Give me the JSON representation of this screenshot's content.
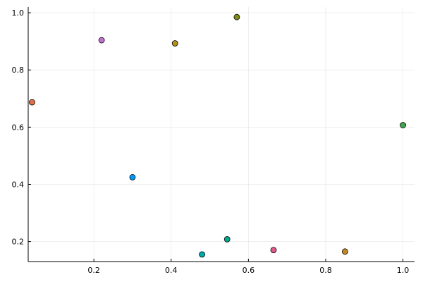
{
  "chart_data": {
    "type": "scatter",
    "title": "",
    "xlabel": "",
    "ylabel": "",
    "grid": true,
    "legend": false,
    "xlim": [
      0.03,
      1.03
    ],
    "ylim": [
      0.13,
      1.02
    ],
    "x_ticks": [
      0.2,
      0.4,
      0.6,
      0.8,
      1.0
    ],
    "x_tick_labels": [
      "0.2",
      "0.4",
      "0.6",
      "0.8",
      "1.0"
    ],
    "y_ticks": [
      0.2,
      0.4,
      0.6,
      0.8,
      1.0
    ],
    "y_tick_labels": [
      "0.2",
      "0.4",
      "0.6",
      "0.8",
      "1.0"
    ],
    "series": [
      {
        "x": [
          0.3
        ],
        "y": [
          0.425
        ],
        "color": "#009AFA"
      },
      {
        "x": [
          0.57
        ],
        "y": [
          0.985
        ],
        "color": "#7F8C1A"
      },
      {
        "x": [
          0.04
        ],
        "y": [
          0.687
        ],
        "color": "#E26F46"
      },
      {
        "x": [
          0.22
        ],
        "y": [
          0.904
        ],
        "color": "#C271D2"
      },
      {
        "x": [
          0.41
        ],
        "y": [
          0.893
        ],
        "color": "#B38F1E"
      },
      {
        "x": [
          1.0
        ],
        "y": [
          0.607
        ],
        "color": "#3EA44E"
      },
      {
        "x": [
          0.48
        ],
        "y": [
          0.155
        ],
        "color": "#00A9AD"
      },
      {
        "x": [
          0.545
        ],
        "y": [
          0.208
        ],
        "color": "#00A890"
      },
      {
        "x": [
          0.665
        ],
        "y": [
          0.17
        ],
        "color": "#E0598B"
      },
      {
        "x": [
          0.85
        ],
        "y": [
          0.165
        ],
        "color": "#C48B23"
      }
    ]
  }
}
